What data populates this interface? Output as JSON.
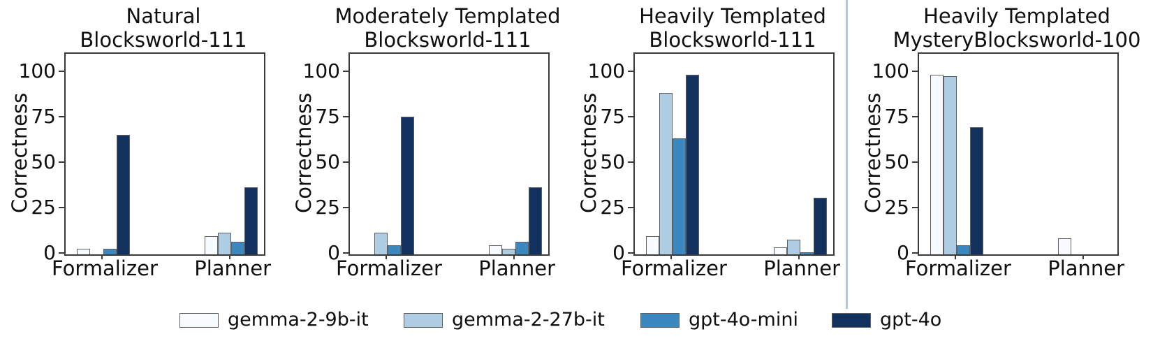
{
  "figure": {
    "ylabel": "Correctness",
    "yticks": [
      0,
      25,
      50,
      75,
      100
    ],
    "categories": [
      "Formalizer",
      "Planner"
    ],
    "background_color": "#ffffff",
    "axes_color": "#3a3a3a",
    "separator_color": "#aec6e8",
    "bar_edge_color": "#606060"
  },
  "legend": {
    "entries": [
      {
        "label": "gemma-2-9b-it",
        "color": "#f7fbff"
      },
      {
        "label": "gemma-2-27b-it",
        "color": "#aecde3"
      },
      {
        "label": "gpt-4o-mini",
        "color": "#3b87c0"
      },
      {
        "label": "gpt-4o",
        "color": "#12315f"
      }
    ]
  },
  "chart_data": [
    {
      "type": "bar",
      "title": "Natural Blocksworld-111",
      "title_lines": [
        "Natural",
        "Blocksworld-111"
      ],
      "categories": [
        "Formalizer",
        "Planner"
      ],
      "xlabel": "",
      "ylabel": "Correctness",
      "ylim": [
        0,
        110
      ],
      "grid": false,
      "series": [
        {
          "name": "gemma-2-9b-it",
          "color": "#f7fbff",
          "values": [
            3,
            10
          ]
        },
        {
          "name": "gemma-2-27b-it",
          "color": "#aecde3",
          "values": [
            0,
            12
          ]
        },
        {
          "name": "gpt-4o-mini",
          "color": "#3b87c0",
          "values": [
            3,
            7
          ]
        },
        {
          "name": "gpt-4o",
          "color": "#12315f",
          "values": [
            66,
            37
          ]
        }
      ]
    },
    {
      "type": "bar",
      "title": "Moderately Templated Blocksworld-111",
      "title_lines": [
        "Moderately Templated",
        "Blocksworld-111"
      ],
      "categories": [
        "Formalizer",
        "Planner"
      ],
      "xlabel": "",
      "ylabel": "Correctness",
      "ylim": [
        0,
        110
      ],
      "grid": false,
      "series": [
        {
          "name": "gemma-2-9b-it",
          "color": "#f7fbff",
          "values": [
            0,
            5
          ]
        },
        {
          "name": "gemma-2-27b-it",
          "color": "#aecde3",
          "values": [
            12,
            3
          ]
        },
        {
          "name": "gpt-4o-mini",
          "color": "#3b87c0",
          "values": [
            5,
            7
          ]
        },
        {
          "name": "gpt-4o",
          "color": "#12315f",
          "values": [
            76,
            37
          ]
        }
      ]
    },
    {
      "type": "bar",
      "title": "Heavily Templated Blocksworld-111",
      "title_lines": [
        "Heavily Templated",
        "Blocksworld-111"
      ],
      "categories": [
        "Formalizer",
        "Planner"
      ],
      "xlabel": "",
      "ylabel": "Correctness",
      "ylim": [
        0,
        110
      ],
      "grid": false,
      "series": [
        {
          "name": "gemma-2-9b-it",
          "color": "#f7fbff",
          "values": [
            10,
            4
          ]
        },
        {
          "name": "gemma-2-27b-it",
          "color": "#aecde3",
          "values": [
            89,
            8
          ]
        },
        {
          "name": "gpt-4o-mini",
          "color": "#3b87c0",
          "values": [
            64,
            1
          ]
        },
        {
          "name": "gpt-4o",
          "color": "#12315f",
          "values": [
            99,
            31
          ]
        }
      ]
    },
    {
      "type": "bar",
      "title": "Heavily Templated MysteryBlocksworld-100",
      "title_lines": [
        "Heavily Templated",
        "MysteryBlocksworld-100"
      ],
      "categories": [
        "Formalizer",
        "Planner"
      ],
      "xlabel": "",
      "ylabel": "Correctness",
      "ylim": [
        0,
        110
      ],
      "grid": false,
      "series": [
        {
          "name": "gemma-2-9b-it",
          "color": "#f7fbff",
          "values": [
            99,
            9
          ]
        },
        {
          "name": "gemma-2-27b-it",
          "color": "#aecde3",
          "values": [
            98,
            0
          ]
        },
        {
          "name": "gpt-4o-mini",
          "color": "#3b87c0",
          "values": [
            5,
            0
          ]
        },
        {
          "name": "gpt-4o",
          "color": "#12315f",
          "values": [
            70,
            0
          ]
        }
      ]
    }
  ]
}
